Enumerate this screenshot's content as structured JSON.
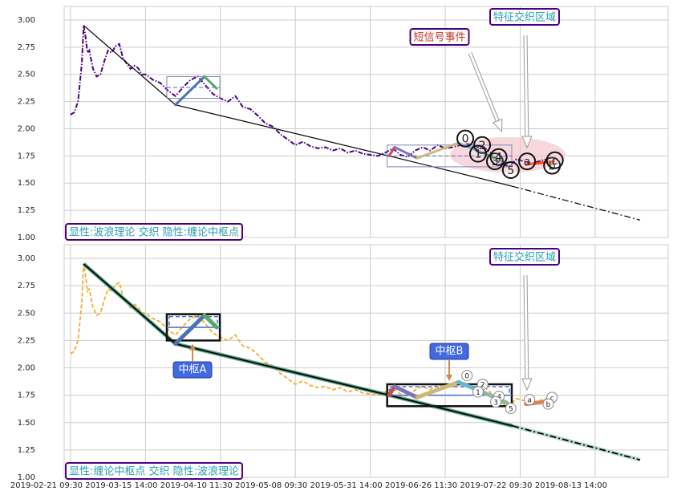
{
  "chart_data": [
    {
      "type": "line",
      "xlim": [
        -3.4,
        319
      ],
      "ylim": [
        1.0,
        3.125
      ],
      "yticks": [
        {
          "value": 1,
          "label": "1.00"
        },
        {
          "value": 1.25,
          "label": "1.25"
        },
        {
          "value": 1.5,
          "label": "1.50"
        },
        {
          "value": 1.75,
          "label": "1.75"
        },
        {
          "value": 2,
          "label": "2.00"
        },
        {
          "value": 2.25,
          "label": "2.25"
        },
        {
          "value": 2.5,
          "label": "2.50"
        },
        {
          "value": 2.75,
          "label": "2.75"
        },
        {
          "value": 3,
          "label": "3.00"
        }
      ],
      "grid": true,
      "price": {
        "color": "#4b0082",
        "style": "dashdot",
        "width": 2,
        "x": [
          0,
          2,
          4,
          6,
          7,
          8,
          9,
          10,
          12,
          14,
          16,
          18,
          20,
          22,
          24,
          26,
          28,
          30,
          32,
          34,
          36,
          38,
          40,
          44,
          48,
          52,
          56,
          60,
          64,
          68,
          72,
          76,
          80,
          84,
          88,
          92,
          96,
          100,
          104,
          108,
          112,
          116,
          120,
          124,
          128,
          132,
          136,
          140,
          144,
          148,
          152,
          156,
          160,
          164,
          168,
          172,
          176,
          180,
          184,
          188,
          192,
          196,
          200,
          204,
          208,
          212,
          216,
          220,
          224,
          226,
          230,
          234,
          238,
          242,
          246,
          250,
          254
        ],
        "values": [
          2.13,
          2.15,
          2.25,
          2.6,
          2.95,
          2.85,
          2.7,
          2.72,
          2.55,
          2.48,
          2.5,
          2.62,
          2.72,
          2.7,
          2.76,
          2.78,
          2.65,
          2.6,
          2.55,
          2.58,
          2.56,
          2.5,
          2.5,
          2.45,
          2.42,
          2.35,
          2.3,
          2.38,
          2.45,
          2.48,
          2.4,
          2.32,
          2.28,
          2.25,
          2.3,
          2.2,
          2.18,
          2.12,
          2.05,
          2.02,
          1.95,
          1.9,
          1.85,
          1.88,
          1.84,
          1.82,
          1.83,
          1.8,
          1.82,
          1.78,
          1.8,
          1.77,
          1.76,
          1.75,
          1.78,
          1.82,
          1.76,
          1.74,
          1.8,
          1.83,
          1.8,
          1.85,
          1.82,
          1.83,
          1.85,
          1.86,
          1.82,
          1.84,
          1.78,
          1.72,
          1.68,
          1.65,
          1.72,
          1.7,
          1.68,
          1.7,
          1.72
        ]
      },
      "trend": {
        "color": "#000000",
        "width": 1.2,
        "x": [
          7,
          56,
          170,
          236
        ],
        "values": [
          2.95,
          2.22,
          1.75,
          1.47
        ]
      },
      "projection": {
        "color": "#000000",
        "width": 1.2,
        "x": [
          236,
          304
        ],
        "values": [
          1.47,
          1.16
        ]
      },
      "pivots": [
        {
          "x": [
            51.4,
            79.7
          ],
          "values": [
            2.28,
            2.48
          ],
          "center": 2.38
        },
        {
          "x": [
            169,
            235.5
          ],
          "values": [
            1.65,
            1.85
          ],
          "center": 1.75
        }
      ],
      "pivot_color": "#7a86b8",
      "waves": [
        {
          "color": "#4c72b0",
          "x": [
            56,
            71.5
          ],
          "values": [
            2.22,
            2.48
          ]
        },
        {
          "color": "#55a868",
          "x": [
            71.5,
            78
          ],
          "values": [
            2.48,
            2.37
          ]
        },
        {
          "color": "#c44e52",
          "x": [
            170,
            173
          ],
          "values": [
            1.75,
            1.83
          ]
        },
        {
          "color": "#8172b2",
          "x": [
            173,
            185
          ],
          "values": [
            1.83,
            1.73
          ]
        },
        {
          "color": "#ccb974",
          "x": [
            185,
            207
          ],
          "values": [
            1.73,
            1.87
          ]
        },
        {
          "color": "#64b5cd",
          "x": [
            207,
            220
          ],
          "values": [
            1.87,
            1.78
          ]
        },
        {
          "color": "#55a868",
          "x": [
            220,
            233
          ],
          "values": [
            1.78,
            1.68
          ]
        },
        {
          "color": "#ff4500",
          "x": [
            243,
            258
          ],
          "values": [
            1.67,
            1.7
          ]
        }
      ],
      "wave_width": 3,
      "wave_labels": [
        {
          "label": "0",
          "x": 210.7,
          "value": 1.91
        },
        {
          "label": "2",
          "x": 219.7,
          "value": 1.85
        },
        {
          "label": "1",
          "x": 217.5,
          "value": 1.77
        },
        {
          "label": "3",
          "x": 226.5,
          "value": 1.7
        },
        {
          "label": "4",
          "x": 228.5,
          "value": 1.74
        },
        {
          "label": "5",
          "x": 235,
          "value": 1.62
        },
        {
          "label": "a",
          "x": 243.7,
          "value": 1.7
        },
        {
          "label": "b",
          "x": 257,
          "value": 1.66
        },
        {
          "label": "c",
          "x": 258.5,
          "value": 1.71
        }
      ],
      "annotations": [
        {
          "text": "短信号事件",
          "color": "#c0392b"
        },
        {
          "text": "特征交织区域",
          "color": "#2a9bb3"
        },
        {
          "text": "显性:波浪理论 交织 隐性:缠论中枢点",
          "color": "#2a9bb3"
        }
      ]
    },
    {
      "type": "line",
      "xlim": [
        -3.4,
        319
      ],
      "ylim": [
        1.0,
        3.125
      ],
      "yticks": [
        {
          "value": 1,
          "label": "1.00"
        },
        {
          "value": 1.25,
          "label": "1.25"
        },
        {
          "value": 1.5,
          "label": "1.50"
        },
        {
          "value": 1.75,
          "label": "1.75"
        },
        {
          "value": 2,
          "label": "2.00"
        },
        {
          "value": 2.25,
          "label": "2.25"
        },
        {
          "value": 2.5,
          "label": "2.50"
        },
        {
          "value": 2.75,
          "label": "2.75"
        },
        {
          "value": 3,
          "label": "3.00"
        }
      ],
      "xticks": [
        {
          "value": 0,
          "label": "2019-02-21 09:30"
        },
        {
          "value": 40,
          "label": "2019-03-15 14:00"
        },
        {
          "value": 80,
          "label": "2019-04-10 11:30"
        },
        {
          "value": 120,
          "label": "2019-05-08 09:30"
        },
        {
          "value": 160,
          "label": "2019-05-31 14:00"
        },
        {
          "value": 200,
          "label": "2019-06-26 11:30"
        },
        {
          "value": 240,
          "label": "2019-07-22 09:30"
        },
        {
          "value": 280,
          "label": "2019-08-13 14:00"
        }
      ],
      "grid": true,
      "price": {
        "color": "#f0b030",
        "style": "dashed",
        "width": 1.8,
        "x": [
          0,
          2,
          4,
          6,
          7,
          8,
          9,
          10,
          12,
          14,
          16,
          18,
          20,
          22,
          24,
          26,
          28,
          30,
          32,
          34,
          36,
          38,
          40,
          44,
          48,
          52,
          56,
          60,
          64,
          68,
          72,
          76,
          80,
          84,
          88,
          92,
          96,
          100,
          104,
          108,
          112,
          116,
          120,
          124,
          128,
          132,
          136,
          140,
          144,
          148,
          152,
          156,
          160,
          164,
          168,
          172,
          176,
          180,
          184,
          188,
          192,
          196,
          200,
          204,
          208,
          212,
          216,
          220,
          224,
          226,
          230,
          234,
          238,
          242,
          246,
          250,
          254
        ],
        "values": [
          2.13,
          2.15,
          2.25,
          2.6,
          2.95,
          2.85,
          2.7,
          2.72,
          2.55,
          2.48,
          2.5,
          2.62,
          2.72,
          2.7,
          2.76,
          2.78,
          2.65,
          2.6,
          2.55,
          2.58,
          2.56,
          2.5,
          2.5,
          2.45,
          2.42,
          2.35,
          2.3,
          2.38,
          2.45,
          2.48,
          2.4,
          2.32,
          2.28,
          2.25,
          2.3,
          2.2,
          2.18,
          2.12,
          2.05,
          2.02,
          1.95,
          1.9,
          1.85,
          1.88,
          1.84,
          1.82,
          1.83,
          1.8,
          1.82,
          1.78,
          1.8,
          1.77,
          1.76,
          1.75,
          1.78,
          1.82,
          1.76,
          1.74,
          1.8,
          1.83,
          1.8,
          1.85,
          1.82,
          1.83,
          1.85,
          1.86,
          1.82,
          1.84,
          1.78,
          1.72,
          1.68,
          1.65,
          1.72,
          1.7,
          1.68,
          1.7,
          1.72
        ]
      },
      "trend": {
        "color": "#000000",
        "halo": "#5fa88a",
        "width": 1.8,
        "x": [
          7,
          56,
          170,
          236
        ],
        "values": [
          2.95,
          2.22,
          1.75,
          1.47
        ]
      },
      "projection": {
        "color": "#000000",
        "halo": "#b8dcc8",
        "width": 1.8,
        "x": [
          236,
          304
        ],
        "values": [
          1.47,
          1.16
        ]
      },
      "pivots": [
        {
          "label": "中枢A",
          "x": [
            51.4,
            79.7
          ],
          "values": [
            2.25,
            2.49
          ],
          "center": 2.37
        },
        {
          "label": "中枢B",
          "x": [
            169,
            235.5
          ],
          "values": [
            1.65,
            1.85
          ],
          "center": 1.75
        }
      ],
      "pivot_color": "#111111",
      "waves": [
        {
          "color": "#4c72b0",
          "x": [
            56,
            71.5
          ],
          "values": [
            2.22,
            2.48
          ]
        },
        {
          "color": "#55a868",
          "x": [
            71.5,
            78
          ],
          "values": [
            2.48,
            2.37
          ]
        },
        {
          "color": "#c44e52",
          "x": [
            170,
            173
          ],
          "values": [
            1.75,
            1.83
          ]
        },
        {
          "color": "#8172b2",
          "x": [
            173,
            185
          ],
          "values": [
            1.83,
            1.73
          ]
        },
        {
          "color": "#ccb974",
          "x": [
            185,
            207
          ],
          "values": [
            1.73,
            1.87
          ]
        },
        {
          "color": "#64b5cd",
          "x": [
            207,
            220
          ],
          "values": [
            1.87,
            1.78
          ]
        },
        {
          "color": "#8fb8a8",
          "x": [
            220,
            233
          ],
          "values": [
            1.78,
            1.68
          ]
        },
        {
          "color": "#dd8452",
          "x": [
            243,
            258
          ],
          "values": [
            1.67,
            1.7
          ]
        }
      ],
      "wave_width": 5,
      "wave_labels": [
        {
          "label": "0",
          "x": 211.6,
          "value": 1.93
        },
        {
          "label": "2",
          "x": 220,
          "value": 1.85
        },
        {
          "label": "1",
          "x": 217.5,
          "value": 1.78
        },
        {
          "label": "4",
          "x": 228.7,
          "value": 1.74
        },
        {
          "label": "3",
          "x": 227,
          "value": 1.69
        },
        {
          "label": "5",
          "x": 235,
          "value": 1.63
        },
        {
          "label": "a",
          "x": 245,
          "value": 1.71
        },
        {
          "label": "c",
          "x": 257,
          "value": 1.73
        },
        {
          "label": "b",
          "x": 255,
          "value": 1.67
        }
      ],
      "annotations": [
        {
          "text": "特征交织区域",
          "color": "#2a9bb3"
        },
        {
          "text": "显性:缠论中枢点 交织 隐性:波浪理论",
          "color": "#2a9bb3"
        }
      ]
    }
  ]
}
